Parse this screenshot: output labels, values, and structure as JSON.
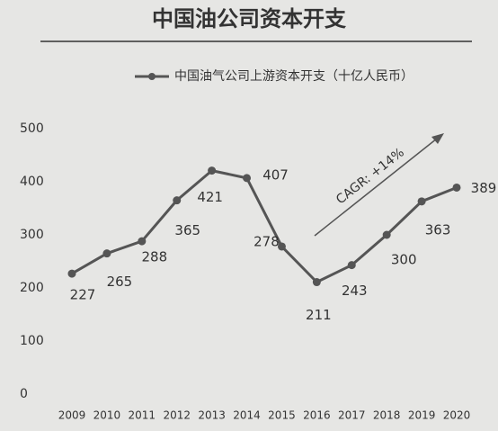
{
  "chart_data": {
    "type": "line",
    "title": "中国油公司资本开支",
    "categories": [
      "2009",
      "2010",
      "2011",
      "2012",
      "2013",
      "2014",
      "2015",
      "2016",
      "2017",
      "2018",
      "2019",
      "2020"
    ],
    "series": [
      {
        "name": "中国油气公司上游资本开支（十亿人民币）",
        "color": "#555555",
        "values": [
          227,
          265,
          288,
          365,
          421,
          407,
          278,
          211,
          243,
          300,
          363,
          389
        ]
      }
    ],
    "ylim": [
      0,
      500
    ],
    "yticks": [
      0,
      100,
      200,
      300,
      400,
      500
    ],
    "grid": false,
    "annotation": "CAGR: +14%"
  }
}
